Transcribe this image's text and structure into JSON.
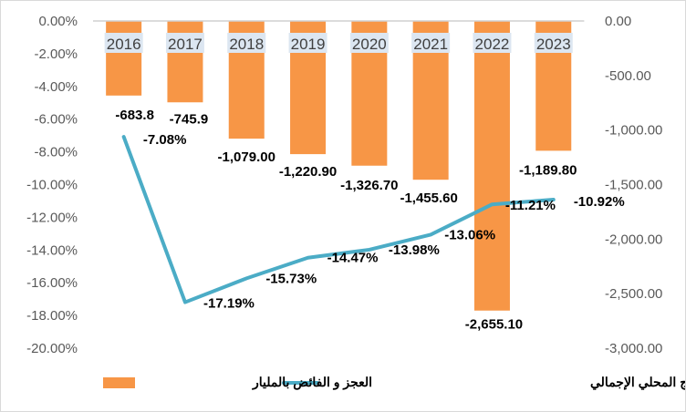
{
  "chart_data": {
    "type": "bar+line",
    "categories": [
      "2016",
      "2017",
      "2018",
      "2019",
      "2020",
      "2021",
      "2022",
      "2023"
    ],
    "series": [
      {
        "name": "العجز و الفائض بالمليار",
        "type": "bar",
        "axis": "right",
        "color": "#F79646",
        "values": [
          -683.8,
          -745.9,
          -1079.0,
          -1220.9,
          -1326.7,
          -1455.6,
          -2655.1,
          -1189.8
        ],
        "labels": [
          "-683.8",
          "-745.9",
          "-1,079.00",
          "-1,220.90",
          "-1,326.70",
          "-1,455.60",
          "-2,655.10",
          "-1,189.80"
        ]
      },
      {
        "name": "الميزان التجاري % الناتج المحلي الإجمالي",
        "type": "line",
        "axis": "left",
        "color": "#4BACC6",
        "values": [
          -7.08,
          -17.19,
          -15.73,
          -14.47,
          -13.98,
          -13.06,
          -11.21,
          -10.92
        ],
        "labels": [
          "-7.08%",
          "-17.19%",
          "-15.73%",
          "-14.47%",
          "-13.98%",
          "-13.06%",
          "-11.21%",
          "-10.92%"
        ]
      }
    ],
    "left_axis": {
      "ylim": [
        -20,
        0
      ],
      "ticks": [
        "0.00%",
        "-2.00%",
        "-4.00%",
        "-6.00%",
        "-8.00%",
        "-10.00%",
        "-12.00%",
        "-14.00%",
        "-16.00%",
        "-18.00%",
        "-20.00%"
      ]
    },
    "right_axis": {
      "ylim": [
        -3000,
        0
      ],
      "ticks": [
        "0.00",
        "-500.00",
        "-1,000.00",
        "-1,500.00",
        "-2,000.00",
        "-2,500.00",
        "-3,000.00"
      ]
    },
    "legend_position": "bottom",
    "grid": false
  }
}
